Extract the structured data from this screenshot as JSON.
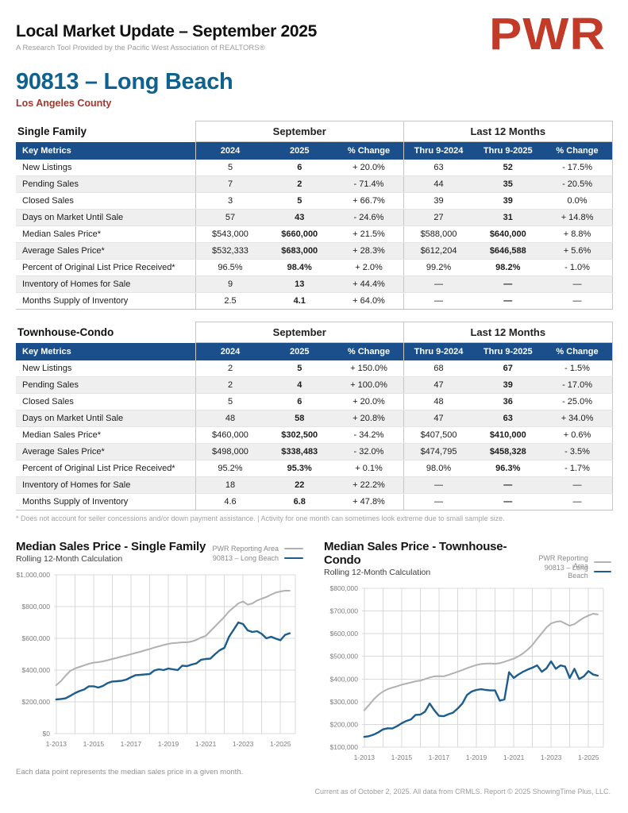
{
  "header": {
    "title": "Local Market Update – September 2025",
    "subtitle": "A Research Tool Provided by the Pacific West Association of REALTORS®",
    "logo_text": "PWR"
  },
  "location": {
    "title": "90813 – Long Beach",
    "county": "Los Angeles County"
  },
  "colors": {
    "table_header_bg": "#1b4f8c",
    "title_blue": "#0f618f",
    "county_red": "#a8362c",
    "logo_red": "#c23a28",
    "line_blue": "#1c5d8d",
    "line_gray": "#b1b1b1"
  },
  "tables": [
    {
      "section_title": "Single Family",
      "group_headers": [
        "September",
        "Last 12 Months"
      ],
      "columns": [
        "Key Metrics",
        "2024",
        "2025",
        "% Change",
        "Thru 9-2024",
        "Thru 9-2025",
        "% Change"
      ],
      "rows": [
        [
          "New Listings",
          "5",
          "6",
          "+ 20.0%",
          "63",
          "52",
          "- 17.5%"
        ],
        [
          "Pending Sales",
          "7",
          "2",
          "- 71.4%",
          "44",
          "35",
          "- 20.5%"
        ],
        [
          "Closed Sales",
          "3",
          "5",
          "+ 66.7%",
          "39",
          "39",
          "0.0%"
        ],
        [
          "Days on Market Until Sale",
          "57",
          "43",
          "- 24.6%",
          "27",
          "31",
          "+ 14.8%"
        ],
        [
          "Median Sales Price*",
          "$543,000",
          "$660,000",
          "+ 21.5%",
          "$588,000",
          "$640,000",
          "+ 8.8%"
        ],
        [
          "Average Sales Price*",
          "$532,333",
          "$683,000",
          "+ 28.3%",
          "$612,204",
          "$646,588",
          "+ 5.6%"
        ],
        [
          "Percent of Original List Price Received*",
          "96.5%",
          "98.4%",
          "+ 2.0%",
          "99.2%",
          "98.2%",
          "- 1.0%"
        ],
        [
          "Inventory of Homes for Sale",
          "9",
          "13",
          "+ 44.4%",
          "—",
          "—",
          "—"
        ],
        [
          "Months Supply of Inventory",
          "2.5",
          "4.1",
          "+ 64.0%",
          "—",
          "—",
          "—"
        ]
      ]
    },
    {
      "section_title": "Townhouse-Condo",
      "group_headers": [
        "September",
        "Last 12 Months"
      ],
      "columns": [
        "Key Metrics",
        "2024",
        "2025",
        "% Change",
        "Thru 9-2024",
        "Thru 9-2025",
        "% Change"
      ],
      "rows": [
        [
          "New Listings",
          "2",
          "5",
          "+ 150.0%",
          "68",
          "67",
          "- 1.5%"
        ],
        [
          "Pending Sales",
          "2",
          "4",
          "+ 100.0%",
          "47",
          "39",
          "- 17.0%"
        ],
        [
          "Closed Sales",
          "5",
          "6",
          "+ 20.0%",
          "48",
          "36",
          "- 25.0%"
        ],
        [
          "Days on Market Until Sale",
          "48",
          "58",
          "+ 20.8%",
          "47",
          "63",
          "+ 34.0%"
        ],
        [
          "Median Sales Price*",
          "$460,000",
          "$302,500",
          "- 34.2%",
          "$407,500",
          "$410,000",
          "+ 0.6%"
        ],
        [
          "Average Sales Price*",
          "$498,000",
          "$338,483",
          "- 32.0%",
          "$474,795",
          "$458,328",
          "- 3.5%"
        ],
        [
          "Percent of Original List Price Received*",
          "95.2%",
          "95.3%",
          "+ 0.1%",
          "98.0%",
          "96.3%",
          "- 1.7%"
        ],
        [
          "Inventory of Homes for Sale",
          "18",
          "22",
          "+ 22.2%",
          "—",
          "—",
          "—"
        ],
        [
          "Months Supply of Inventory",
          "4.6",
          "6.8",
          "+ 47.8%",
          "—",
          "—",
          "—"
        ]
      ]
    }
  ],
  "table_footnote": "* Does not account for seller concessions and/or down payment assistance. | Activity for one month can sometimes look extreme due to small sample size.",
  "chart_caption": "Each data point represents the median sales price in a given month.",
  "footer": "Current as of October 2, 2025. All data from CRMLS. Report © 2025 ShowingTime Plus, LLC.",
  "chart_data": [
    {
      "type": "line",
      "title": "Median Sales Price - Single Family",
      "subtitle": "Rolling 12-Month Calculation",
      "legend_position": "top-right",
      "grid": true,
      "xmin": 2012.88,
      "xmax": 2025.8,
      "x_start": 2013.0,
      "x_step": 0.25,
      "grid_years": [
        2013,
        2025
      ],
      "x_ticks": [
        {
          "v": 2013,
          "label": "1-2013"
        },
        {
          "v": 2015,
          "label": "1-2015"
        },
        {
          "v": 2017,
          "label": "1-2017"
        },
        {
          "v": 2019,
          "label": "1-2019"
        },
        {
          "v": 2021,
          "label": "1-2021"
        },
        {
          "v": 2023,
          "label": "1-2023"
        },
        {
          "v": 2025,
          "label": "1-2025"
        }
      ],
      "ylim": [
        0,
        1000000
      ],
      "y_ticks": [
        {
          "v": 0,
          "label": "$0"
        },
        {
          "v": 200000,
          "label": "$200,000"
        },
        {
          "v": 400000,
          "label": "$400,000"
        },
        {
          "v": 600000,
          "label": "$600,000"
        },
        {
          "v": 800000,
          "label": "$800,000"
        },
        {
          "v": 1000000,
          "label": "$1,000,000"
        }
      ],
      "series": [
        {
          "name": "PWR Reporting Area",
          "color": "#b1b1b1",
          "width": 2,
          "values": [
            305000,
            330000,
            365000,
            395000,
            410000,
            420000,
            430000,
            440000,
            447000,
            450000,
            455000,
            462000,
            470000,
            477000,
            485000,
            492000,
            500000,
            508000,
            515000,
            525000,
            532000,
            542000,
            550000,
            558000,
            565000,
            570000,
            572000,
            575000,
            575000,
            580000,
            590000,
            605000,
            615000,
            645000,
            675000,
            705000,
            735000,
            770000,
            795000,
            820000,
            832000,
            812000,
            820000,
            838000,
            850000,
            860000,
            875000,
            888000,
            895000,
            900000,
            900000
          ]
        },
        {
          "name": "90813 – Long Beach",
          "color": "#1c5d8d",
          "width": 2.4,
          "values": [
            215000,
            218000,
            222000,
            238000,
            255000,
            268000,
            278000,
            298000,
            298000,
            290000,
            300000,
            318000,
            328000,
            330000,
            333000,
            340000,
            355000,
            368000,
            370000,
            373000,
            375000,
            398000,
            405000,
            400000,
            410000,
            405000,
            400000,
            428000,
            425000,
            435000,
            442000,
            465000,
            470000,
            472000,
            500000,
            525000,
            540000,
            610000,
            655000,
            700000,
            690000,
            650000,
            640000,
            645000,
            628000,
            600000,
            610000,
            598000,
            588000,
            622000,
            632000
          ]
        }
      ]
    },
    {
      "type": "line",
      "title": "Median Sales Price - Townhouse-Condo",
      "subtitle": "Rolling 12-Month Calculation",
      "legend_position": "top-right",
      "grid": true,
      "xmin": 2012.88,
      "xmax": 2025.8,
      "x_start": 2013.0,
      "x_step": 0.25,
      "grid_years": [
        2013,
        2025
      ],
      "x_ticks": [
        {
          "v": 2013,
          "label": "1-2013"
        },
        {
          "v": 2015,
          "label": "1-2015"
        },
        {
          "v": 2017,
          "label": "1-2017"
        },
        {
          "v": 2019,
          "label": "1-2019"
        },
        {
          "v": 2021,
          "label": "1-2021"
        },
        {
          "v": 2023,
          "label": "1-2023"
        },
        {
          "v": 2025,
          "label": "1-2025"
        }
      ],
      "ylim": [
        100000,
        800000
      ],
      "y_ticks": [
        {
          "v": 100000,
          "label": "$100,000"
        },
        {
          "v": 200000,
          "label": "$200,000"
        },
        {
          "v": 300000,
          "label": "$300,000"
        },
        {
          "v": 400000,
          "label": "$400,000"
        },
        {
          "v": 500000,
          "label": "$500,000"
        },
        {
          "v": 600000,
          "label": "$600,000"
        },
        {
          "v": 700000,
          "label": "$700,000"
        },
        {
          "v": 800000,
          "label": "$800,000"
        }
      ],
      "series": [
        {
          "name": "PWR Reporting Area",
          "color": "#b1b1b1",
          "width": 2,
          "values": [
            262000,
            285000,
            310000,
            330000,
            345000,
            355000,
            362000,
            368000,
            375000,
            380000,
            385000,
            390000,
            393000,
            400000,
            407000,
            412000,
            413000,
            412000,
            418000,
            425000,
            432000,
            440000,
            448000,
            455000,
            462000,
            466000,
            468000,
            469000,
            467000,
            470000,
            476000,
            483000,
            490000,
            500000,
            513000,
            530000,
            550000,
            577000,
            602000,
            627000,
            645000,
            652000,
            655000,
            645000,
            635000,
            642000,
            657000,
            670000,
            680000,
            688000,
            685000
          ]
        },
        {
          "name": "90813 – Long Beach",
          "color": "#1c5d8d",
          "width": 2.4,
          "values": [
            145000,
            148000,
            155000,
            165000,
            178000,
            183000,
            182000,
            192000,
            205000,
            215000,
            222000,
            242000,
            243000,
            256000,
            292000,
            262000,
            238000,
            236000,
            245000,
            252000,
            270000,
            292000,
            330000,
            345000,
            352000,
            355000,
            352000,
            350000,
            350000,
            305000,
            310000,
            430000,
            405000,
            420000,
            432000,
            442000,
            450000,
            460000,
            432000,
            447000,
            478000,
            445000,
            460000,
            455000,
            405000,
            445000,
            400000,
            412000,
            435000,
            420000,
            415000
          ]
        }
      ]
    }
  ]
}
